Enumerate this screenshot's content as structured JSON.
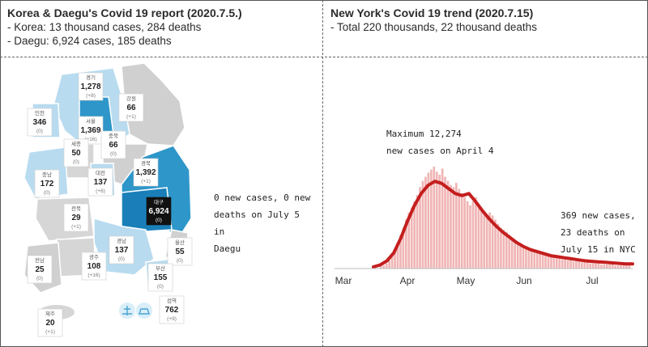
{
  "left_panel": {
    "title": "Korea & Daegu's Covid 19 report (2020.7.5.)",
    "line1": "- Korea: 13 thousand cases, 284 deaths",
    "line2": "- Daegu: 6,924 cases, 185 deaths",
    "note_lines": [
      "0 new cases, 0 new",
      "deaths on July 5 in",
      "Daegu"
    ],
    "regions": [
      {
        "name": "경기",
        "count": "1,278",
        "delta": "(+8)",
        "fill": "#b8dbef"
      },
      {
        "name": "서울",
        "count": "1,369",
        "delta": "(+16)",
        "fill": "#2e96c9"
      },
      {
        "name": "강원",
        "count": "66",
        "delta": "(+1)",
        "fill": "#d0d0d0"
      },
      {
        "name": "인천",
        "count": "346",
        "delta": "(0)",
        "fill": "#b8dbef"
      },
      {
        "name": "충북",
        "count": "66",
        "delta": "(0)",
        "fill": "#d0d0d0"
      },
      {
        "name": "세종",
        "count": "50",
        "delta": "(0)",
        "fill": "#d6d6d6"
      },
      {
        "name": "경북",
        "count": "1,392",
        "delta": "(+1)",
        "fill": "#2e96c9"
      },
      {
        "name": "충남",
        "count": "172",
        "delta": "(0)",
        "fill": "#b8dbef"
      },
      {
        "name": "대전",
        "count": "137",
        "delta": "(+6)",
        "fill": "#b8dbef"
      },
      {
        "name": "대구",
        "count": "6,924",
        "delta": "(0)",
        "fill": "#1a7fb8"
      },
      {
        "name": "전북",
        "count": "29",
        "delta": "(+1)",
        "fill": "#d6d6d6"
      },
      {
        "name": "경남",
        "count": "137",
        "delta": "(0)",
        "fill": "#b8dbef"
      },
      {
        "name": "울산",
        "count": "55",
        "delta": "(0)",
        "fill": "#d0d0d0"
      },
      {
        "name": "광주",
        "count": "108",
        "delta": "(+16)",
        "fill": "#d6d6d6"
      },
      {
        "name": "전남",
        "count": "25",
        "delta": "(0)",
        "fill": "#d0d0d0"
      },
      {
        "name": "부산",
        "count": "155",
        "delta": "(0)",
        "fill": "#b8dbef"
      },
      {
        "name": "제주",
        "count": "20",
        "delta": "(+1)",
        "fill": "#d6d6d6"
      },
      {
        "name": "검역",
        "count": "762",
        "delta": "(+9)",
        "fill": "#ffffff"
      }
    ]
  },
  "right_panel": {
    "title": "New York's Covid 19 trend (2020.7.15)",
    "line1": "- Total 220 thousands, 22 thousand deaths",
    "peak_note_lines": [
      "Maximum 12,274",
      "new cases on April 4"
    ],
    "latest_note_lines": [
      "369 new cases,",
      "23 deaths on",
      "July 15 in NYC"
    ]
  },
  "colors": {
    "bar": "#f0b4b4",
    "trend": "#c41e1e",
    "korea_dark": "#1a7fb8",
    "korea_mid": "#2e96c9",
    "korea_light": "#b8dbef",
    "korea_gray": "#d0d0d0"
  },
  "chart_data": {
    "type": "bar",
    "x_tick_labels": [
      "Mar",
      "Apr",
      "May",
      "Jun",
      "Jul"
    ],
    "daily_new_cases_relative": [
      0.02,
      0.03,
      0.05,
      0.08,
      0.12,
      0.18,
      0.25,
      0.33,
      0.4,
      0.48,
      0.55,
      0.6,
      0.66,
      0.72,
      0.8,
      0.86,
      0.9,
      0.94,
      0.97,
      1.0,
      0.95,
      0.92,
      0.98,
      0.9,
      0.86,
      0.82,
      0.8,
      0.84,
      0.78,
      0.74,
      0.7,
      0.66,
      0.62,
      0.66,
      0.7,
      0.62,
      0.58,
      0.54,
      0.5,
      0.55,
      0.52,
      0.48,
      0.44,
      0.4,
      0.38,
      0.36,
      0.33,
      0.3,
      0.28,
      0.26,
      0.25,
      0.23,
      0.22,
      0.2,
      0.19,
      0.18,
      0.17,
      0.16,
      0.15,
      0.14,
      0.13,
      0.12,
      0.11,
      0.1,
      0.1,
      0.09,
      0.09,
      0.08,
      0.08,
      0.07,
      0.07,
      0.07,
      0.06,
      0.06,
      0.06,
      0.05,
      0.05,
      0.05,
      0.05,
      0.04,
      0.04,
      0.04,
      0.04,
      0.04,
      0.03,
      0.03,
      0.03,
      0.03,
      0.03,
      0.03
    ],
    "trend_relative": [
      0.0,
      0.02,
      0.06,
      0.14,
      0.28,
      0.45,
      0.6,
      0.72,
      0.8,
      0.84,
      0.82,
      0.77,
      0.72,
      0.7,
      0.72,
      0.64,
      0.55,
      0.47,
      0.4,
      0.34,
      0.29,
      0.24,
      0.2,
      0.17,
      0.15,
      0.13,
      0.11,
      0.1,
      0.09,
      0.08,
      0.07,
      0.06,
      0.055,
      0.05,
      0.045,
      0.04,
      0.035,
      0.03,
      0.03
    ]
  }
}
